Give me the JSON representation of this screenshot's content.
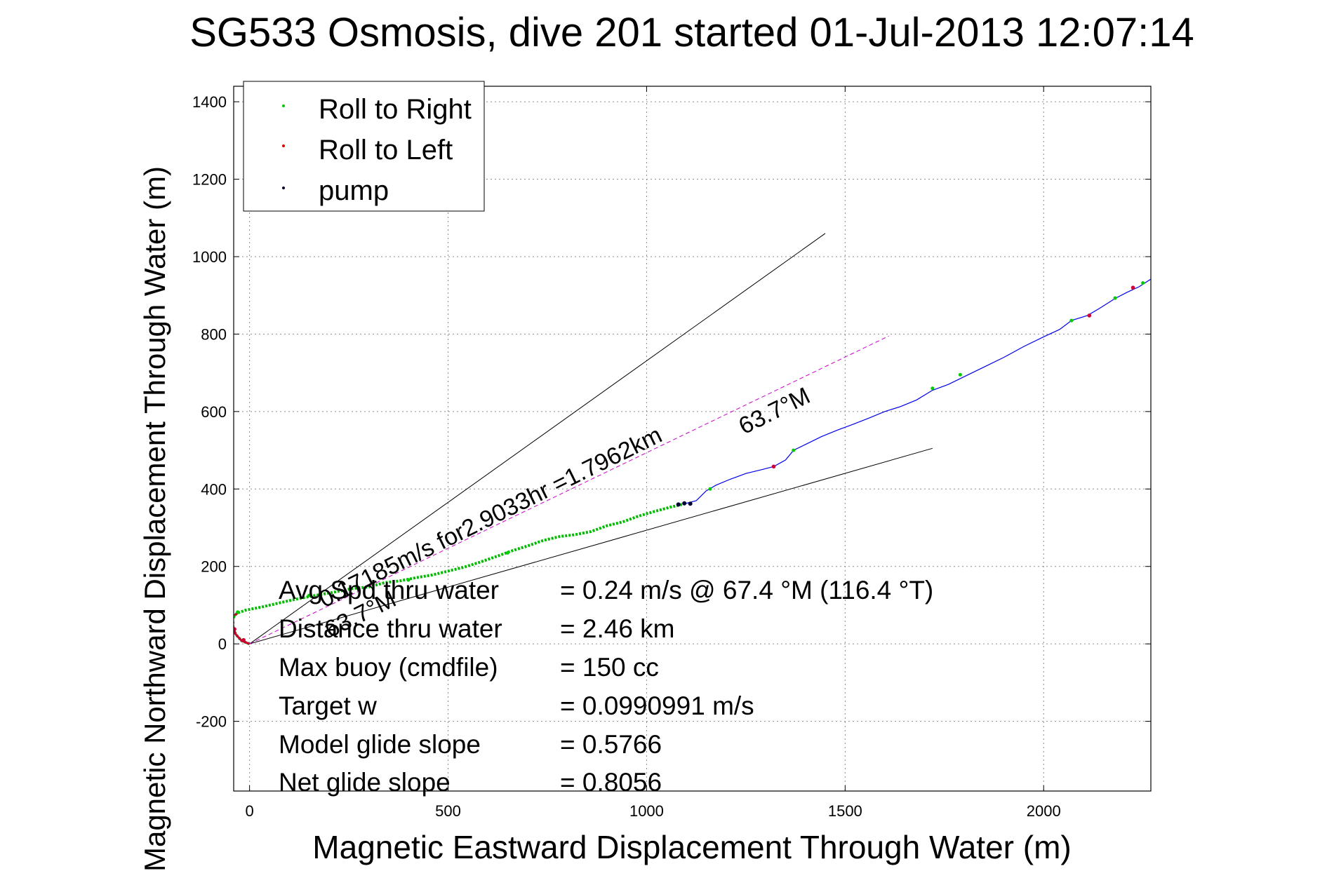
{
  "chart_data": {
    "type": "line",
    "title": "SG533 Osmosis, dive 201 started 01-Jul-2013 12:07:14",
    "xlabel": "Magnetic Eastward Displacement Through Water (m)",
    "ylabel": "Magnetic Northward Displacement Through Water (m)",
    "xlim": [
      -40,
      2270
    ],
    "ylim": [
      -380,
      1440
    ],
    "xticks": [
      0,
      500,
      1000,
      1500,
      2000
    ],
    "yticks": [
      -200,
      0,
      200,
      400,
      600,
      800,
      1000,
      1200,
      1400
    ],
    "grid": true,
    "legend_position": "top-left",
    "legend": [
      {
        "label": "Roll to Right",
        "color": "#00cc00"
      },
      {
        "label": "Roll to Left",
        "color": "#dd0000"
      },
      {
        "label": "pump",
        "color": "#000033"
      }
    ],
    "colors": {
      "track_dive": "#00bb00",
      "track_climb": "#0000ee",
      "roll_left": "#cc0033",
      "pump": "#000033",
      "wedge": "#000000",
      "heading": "#cc00cc"
    },
    "series": [
      {
        "name": "",
        "style": "dive-track",
        "x": [
          0,
          -20,
          -35,
          -45,
          -42,
          -30,
          -10,
          30,
          80,
          120,
          170,
          210,
          260,
          300,
          340,
          380,
          420,
          460,
          500,
          540,
          580,
          620,
          660,
          700,
          740,
          780,
          820,
          860,
          900,
          940,
          980,
          1020,
          1060,
          1080,
          1100
        ],
        "y": [
          0,
          8,
          25,
          55,
          70,
          80,
          87,
          95,
          107,
          116,
          126,
          133,
          143,
          147,
          158,
          163,
          171,
          178,
          188,
          198,
          211,
          225,
          240,
          253,
          267,
          277,
          282,
          290,
          305,
          315,
          330,
          342,
          353,
          358,
          363
        ]
      },
      {
        "name": "",
        "style": "climb-track",
        "x": [
          1100,
          1125,
          1150,
          1175,
          1210,
          1250,
          1290,
          1320,
          1350,
          1370,
          1400,
          1440,
          1480,
          1520,
          1560,
          1600,
          1640,
          1680,
          1720,
          1760,
          1800,
          1850,
          1900,
          1950,
          2000,
          2040,
          2070,
          2110,
          2140,
          2180,
          2210,
          2240,
          2270
        ],
        "y": [
          363,
          370,
          395,
          410,
          425,
          440,
          450,
          458,
          475,
          500,
          515,
          535,
          552,
          567,
          583,
          600,
          613,
          630,
          655,
          670,
          690,
          715,
          740,
          768,
          793,
          812,
          835,
          848,
          866,
          892,
          908,
          922,
          942
        ]
      }
    ],
    "markers": {
      "roll_to_right": [
        [
          -40,
          70
        ],
        [
          -30,
          82
        ],
        [
          150,
          125
        ],
        [
          400,
          165
        ],
        [
          650,
          235
        ],
        [
          1160,
          400
        ],
        [
          1370,
          500
        ],
        [
          1720,
          660
        ],
        [
          1790,
          695
        ],
        [
          2070,
          835
        ],
        [
          2180,
          893
        ],
        [
          2250,
          932
        ]
      ],
      "roll_to_left": [
        [
          -15,
          10
        ],
        [
          -38,
          38
        ],
        [
          -43,
          55
        ],
        [
          1320,
          458
        ],
        [
          2115,
          848
        ],
        [
          2225,
          920
        ]
      ],
      "pump": [
        [
          1080,
          360
        ],
        [
          1095,
          363
        ],
        [
          1110,
          362
        ]
      ]
    },
    "lines": [
      {
        "style": "wedge",
        "x": [
          0,
          1450
        ],
        "y": [
          0,
          1060
        ]
      },
      {
        "style": "wedge",
        "x": [
          0,
          1720
        ],
        "y": [
          0,
          505
        ]
      },
      {
        "style": "heading",
        "x": [
          0,
          1610
        ],
        "y": [
          0,
          795
        ]
      }
    ],
    "annotations": {
      "heading_along": "0.17185m/s for2.9033hr =1.7962km",
      "heading_right": "63.7°M",
      "heading_near": "63.7°M"
    },
    "stats": [
      {
        "label": "Avg Spd thru water",
        "value": "=  0.24 m/s @  67.4 °M (116.4 °T)"
      },
      {
        "label": "Distance thru water",
        "value": "=  2.46 km"
      },
      {
        "label": "Max buoy (cmdfile)",
        "value": "= 150 cc"
      },
      {
        "label": "Target w",
        "value": "= 0.0990991 m/s"
      },
      {
        "label": "Model glide slope",
        "value": "= 0.5766"
      },
      {
        "label": "Net glide slope",
        "value": "= 0.8056"
      }
    ]
  }
}
